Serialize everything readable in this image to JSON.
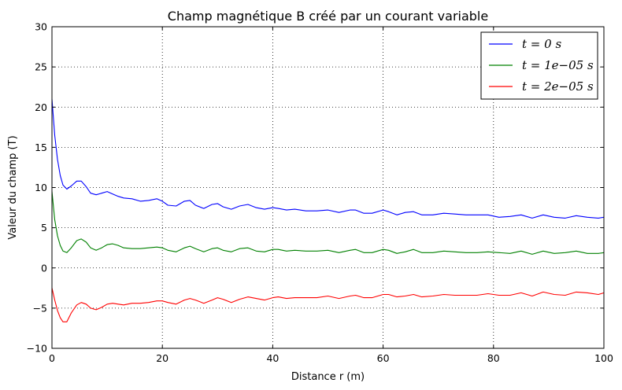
{
  "chart_data": {
    "type": "line",
    "title": "Champ magnétique B créé par un courant variable",
    "xlabel": "Distance r (m)",
    "ylabel": "Valeur du champ (T)",
    "xlim": [
      0,
      100
    ],
    "ylim": [
      -10,
      30
    ],
    "xticks": [
      0,
      20,
      40,
      60,
      80,
      100
    ],
    "yticks": [
      -10,
      -5,
      0,
      5,
      10,
      15,
      20,
      25,
      30
    ],
    "grid": true,
    "legend_position": "top-right",
    "series": [
      {
        "name": "t = 0 s",
        "color": "#0000ff",
        "x": [
          0,
          0.5,
          1,
          1.5,
          2,
          2.7,
          3.5,
          4.5,
          5.3,
          6.2,
          7,
          8,
          9,
          10,
          11,
          12,
          13,
          14.5,
          16,
          17.5,
          19,
          20,
          21,
          22.5,
          24,
          25,
          26,
          27.5,
          29,
          30,
          31,
          32.5,
          34,
          35.5,
          37,
          38.5,
          40,
          41,
          42.5,
          44,
          46,
          48,
          50,
          52,
          54,
          55,
          56.5,
          58,
          60,
          61,
          62.5,
          64,
          65.5,
          67,
          69,
          71,
          73,
          75,
          77,
          79,
          81,
          83,
          85,
          87,
          89,
          91,
          93,
          95,
          97,
          99,
          100
        ],
        "y": [
          21,
          16.5,
          13.5,
          11.5,
          10.3,
          9.8,
          10.2,
          10.8,
          10.8,
          10.1,
          9.3,
          9.1,
          9.3,
          9.5,
          9.2,
          8.9,
          8.7,
          8.6,
          8.3,
          8.4,
          8.6,
          8.3,
          7.8,
          7.7,
          8.3,
          8.4,
          7.8,
          7.4,
          7.9,
          8.0,
          7.6,
          7.3,
          7.7,
          7.9,
          7.5,
          7.3,
          7.5,
          7.4,
          7.2,
          7.3,
          7.1,
          7.1,
          7.2,
          6.9,
          7.2,
          7.2,
          6.8,
          6.8,
          7.2,
          7.0,
          6.6,
          6.9,
          7.0,
          6.6,
          6.6,
          6.8,
          6.7,
          6.6,
          6.6,
          6.6,
          6.3,
          6.4,
          6.6,
          6.2,
          6.6,
          6.3,
          6.2,
          6.5,
          6.3,
          6.2,
          6.3
        ]
      },
      {
        "name": "t = 1e−05 s",
        "color": "#008000",
        "x": [
          0,
          0.5,
          1,
          1.5,
          2,
          2.7,
          3.5,
          4.5,
          5.3,
          6.2,
          7,
          8,
          9,
          10,
          11,
          12,
          13,
          14.5,
          16,
          17.5,
          19,
          20,
          21,
          22.5,
          24,
          25,
          26,
          27.5,
          29,
          30,
          31,
          32.5,
          34,
          35.5,
          37,
          38.5,
          40,
          41,
          42.5,
          44,
          46,
          48,
          50,
          52,
          54,
          55,
          56.5,
          58,
          60,
          61,
          62.5,
          64,
          65.5,
          67,
          69,
          71,
          73,
          75,
          77,
          79,
          81,
          83,
          85,
          87,
          89,
          91,
          93,
          95,
          97,
          99,
          100
        ],
        "y": [
          9.5,
          6.0,
          4.0,
          2.8,
          2.1,
          1.9,
          2.5,
          3.4,
          3.6,
          3.2,
          2.5,
          2.2,
          2.5,
          2.9,
          3.0,
          2.8,
          2.5,
          2.4,
          2.4,
          2.5,
          2.6,
          2.5,
          2.2,
          2.0,
          2.5,
          2.7,
          2.4,
          2.0,
          2.4,
          2.5,
          2.2,
          2.0,
          2.4,
          2.5,
          2.1,
          2.0,
          2.3,
          2.3,
          2.1,
          2.2,
          2.1,
          2.1,
          2.2,
          1.9,
          2.2,
          2.3,
          1.9,
          1.9,
          2.3,
          2.2,
          1.8,
          2.0,
          2.3,
          1.9,
          1.9,
          2.1,
          2.0,
          1.9,
          1.9,
          2.0,
          1.9,
          1.8,
          2.1,
          1.7,
          2.1,
          1.8,
          1.9,
          2.1,
          1.8,
          1.8,
          1.9
        ]
      },
      {
        "name": "t = 2e−05 s",
        "color": "#ff0000",
        "x": [
          0,
          0.5,
          1,
          1.5,
          2,
          2.7,
          3.5,
          4.5,
          5.3,
          6.2,
          7,
          8,
          9,
          10,
          11,
          12,
          13,
          14.5,
          16,
          17.5,
          19,
          20,
          21,
          22.5,
          24,
          25,
          26,
          27.5,
          29,
          30,
          31,
          32.5,
          34,
          35.5,
          37,
          38.5,
          40,
          41,
          42.5,
          44,
          46,
          48,
          50,
          52,
          54,
          55,
          56.5,
          58,
          60,
          61,
          62.5,
          64,
          65.5,
          67,
          69,
          71,
          73,
          75,
          77,
          79,
          81,
          83,
          85,
          87,
          89,
          91,
          93,
          95,
          97,
          99,
          100
        ],
        "y": [
          -2.5,
          -4.0,
          -5.3,
          -6.2,
          -6.7,
          -6.7,
          -5.6,
          -4.6,
          -4.3,
          -4.5,
          -5.0,
          -5.2,
          -4.9,
          -4.5,
          -4.4,
          -4.5,
          -4.6,
          -4.4,
          -4.4,
          -4.3,
          -4.1,
          -4.1,
          -4.3,
          -4.5,
          -4.0,
          -3.8,
          -4.0,
          -4.4,
          -4.0,
          -3.7,
          -3.9,
          -4.3,
          -3.9,
          -3.6,
          -3.8,
          -4.0,
          -3.7,
          -3.6,
          -3.8,
          -3.7,
          -3.7,
          -3.7,
          -3.5,
          -3.8,
          -3.5,
          -3.4,
          -3.7,
          -3.7,
          -3.3,
          -3.3,
          -3.6,
          -3.5,
          -3.3,
          -3.6,
          -3.5,
          -3.3,
          -3.4,
          -3.4,
          -3.4,
          -3.2,
          -3.4,
          -3.4,
          -3.1,
          -3.5,
          -3.0,
          -3.3,
          -3.4,
          -3.0,
          -3.1,
          -3.3,
          -3.1
        ]
      }
    ]
  }
}
